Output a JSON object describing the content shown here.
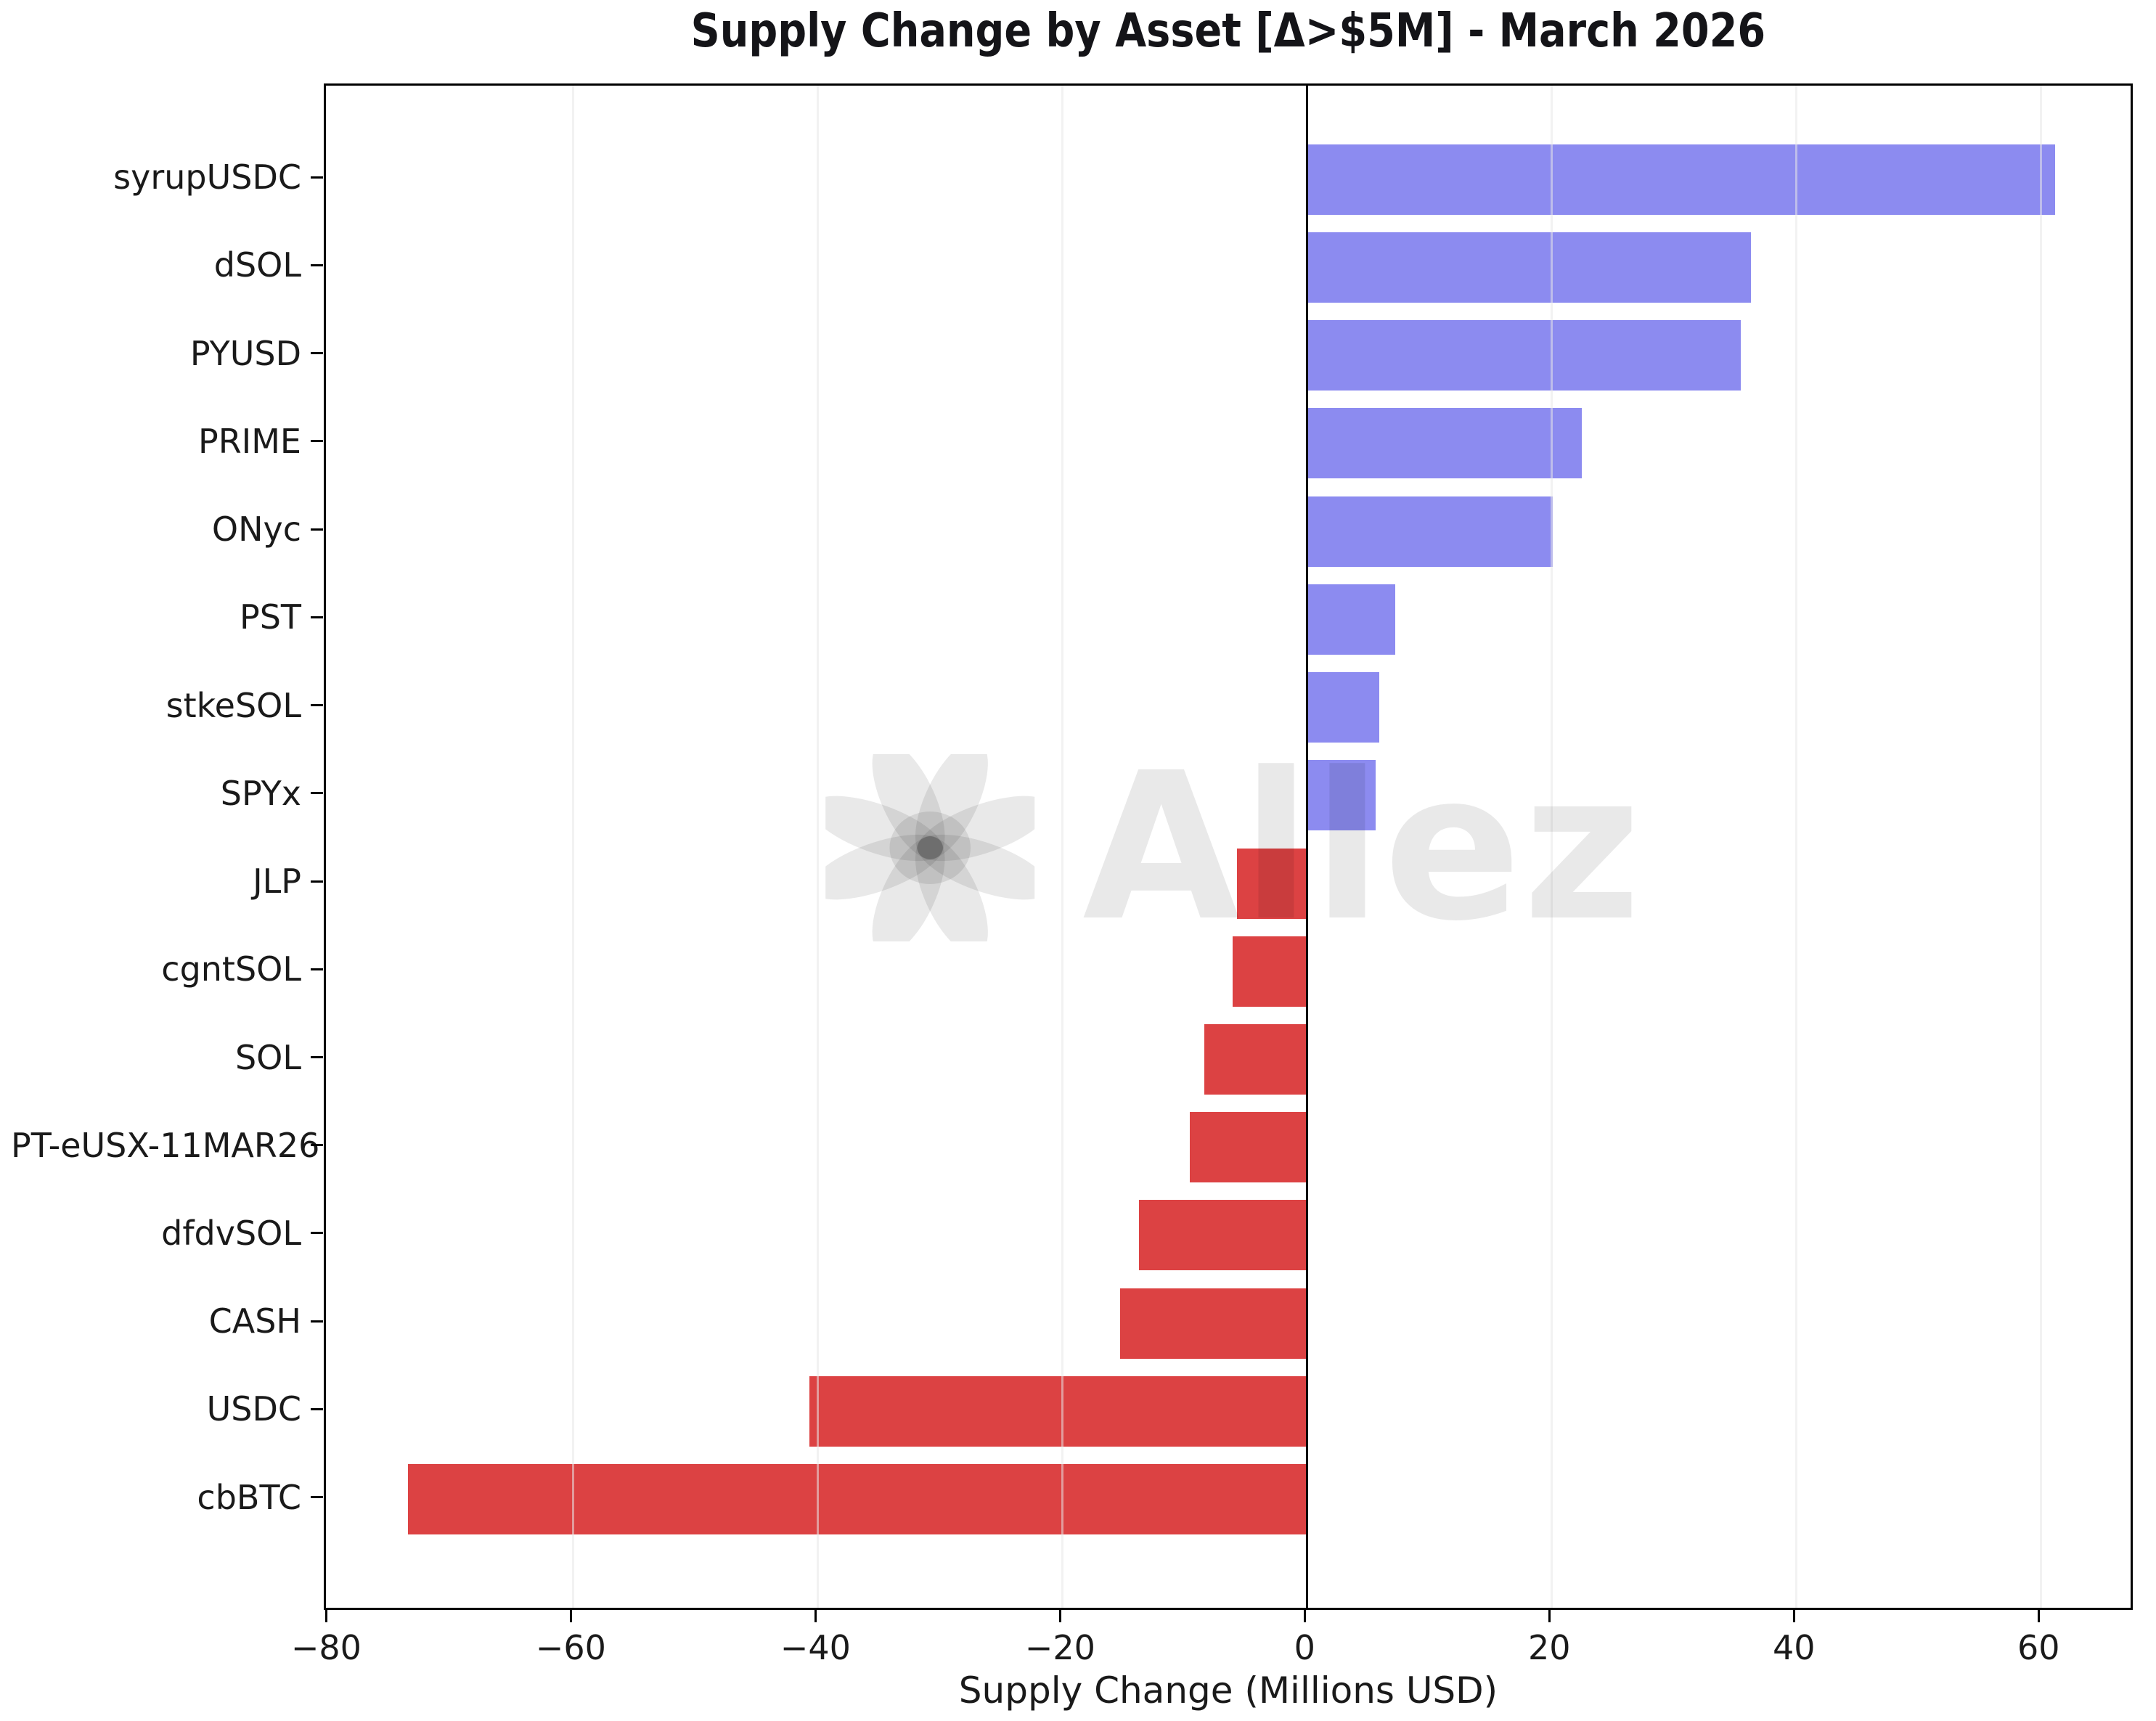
{
  "title": "Supply Change by Asset [Δ>$5M] - March 2026",
  "watermark": {
    "text": "Allez",
    "icon": "flower-asterisk-icon"
  },
  "chart_data": {
    "type": "bar",
    "orientation": "horizontal",
    "title": "Supply Change by Asset [Δ>$5M] - March 2026",
    "xlabel": "Supply Change (Millions USD)",
    "ylabel": "",
    "categories": [
      "syrupUSDC",
      "dSOL",
      "PYUSD",
      "PRIME",
      "ONyc",
      "PST",
      "stkeSOL",
      "SPYx",
      "JLP",
      "cgntSOL",
      "SOL",
      "PT-eUSX-11MAR26",
      "dfdvSOL",
      "CASH",
      "USDC",
      "cbBTC"
    ],
    "values": [
      61.2,
      36.3,
      35.5,
      22.5,
      20.1,
      7.2,
      5.9,
      5.6,
      -5.7,
      -6.1,
      -8.4,
      -9.6,
      -13.7,
      -15.3,
      -40.7,
      -73.5
    ],
    "xlim": [
      -80.2,
      67.7
    ],
    "x_ticks": [
      -80,
      -60,
      -40,
      -20,
      0,
      20,
      40,
      60
    ],
    "x_tick_labels": [
      "−80",
      "−60",
      "−40",
      "−20",
      "0",
      "20",
      "40",
      "60"
    ],
    "grid": "vertical-light",
    "legend": "none",
    "colors": {
      "positive_bar": "#8c8bf0",
      "negative_bar": "#dc4243",
      "zero_line": "#000000",
      "gridline": "rgba(232,232,232,0.55)",
      "axis_text": "#1a1a1a",
      "watermark": "rgba(0,0,0,0.085)"
    }
  }
}
